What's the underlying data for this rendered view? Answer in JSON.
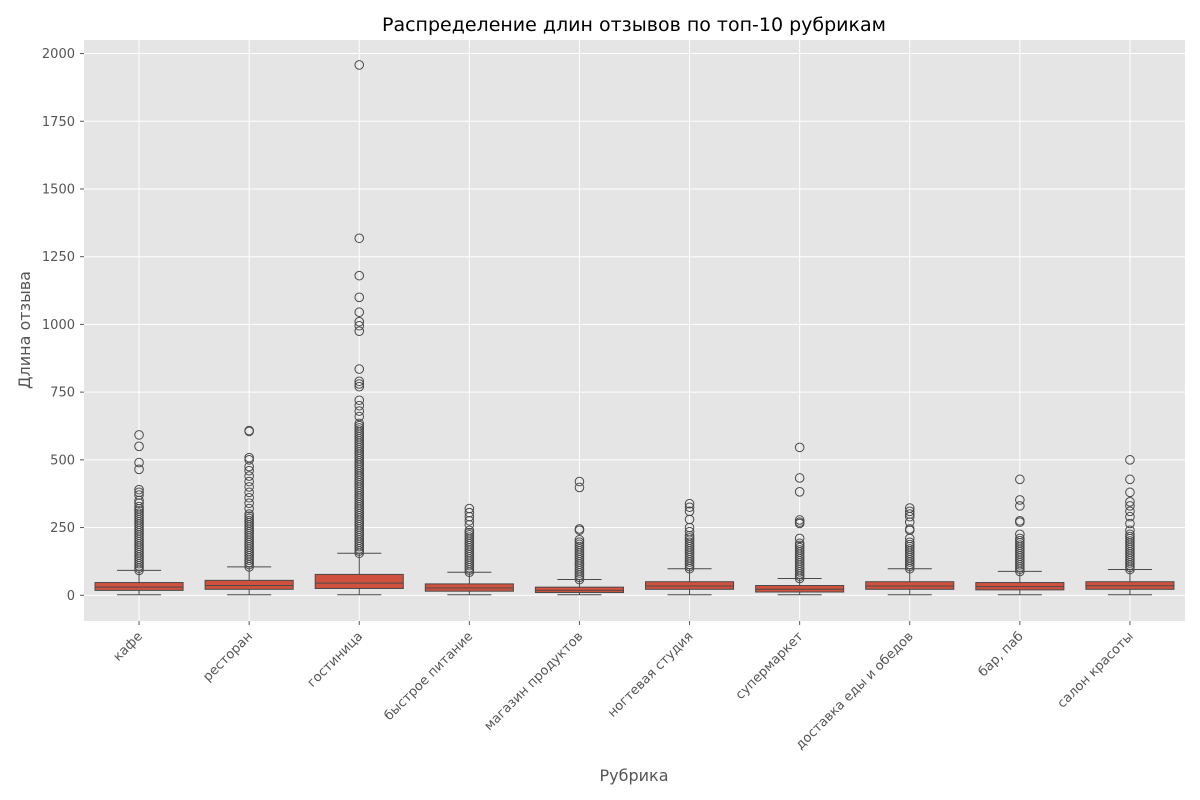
{
  "chart_data": {
    "type": "box",
    "title": "Распределение длин отзывов по топ-10 рубрикам",
    "xlabel": "Рубрика",
    "ylabel": "Длина отзыва",
    "ylim": [
      -95,
      2050
    ],
    "yticks": [
      0,
      250,
      500,
      750,
      1000,
      1250,
      1500,
      1750,
      2000
    ],
    "grid": true,
    "box_color": "#d1513f",
    "background_color": "#e5e5e5",
    "categories": [
      "кафе",
      "ресторан",
      "гостиница",
      "быстрое питание",
      "магазин продуктов",
      "ногтевая студия",
      "супермаркет",
      "доставка еды и обедов",
      "бар, паб",
      "салон красоты"
    ],
    "boxes": [
      {
        "category": "кафе",
        "whisker_low": 2,
        "q1": 18,
        "median": 30,
        "q3": 47,
        "whisker_high": 92,
        "outlier_range": [
          92,
          330
        ],
        "outliers": [
          340,
          350,
          370,
          380,
          390,
          465,
          490,
          550,
          592
        ]
      },
      {
        "category": "ресторан",
        "whisker_low": 2,
        "q1": 22,
        "median": 36,
        "q3": 55,
        "whisker_high": 105,
        "outlier_range": [
          105,
          300
        ],
        "outliers": [
          320,
          340,
          360,
          380,
          400,
          420,
          440,
          460,
          475,
          500,
          508,
          605,
          608
        ]
      },
      {
        "category": "гостиница",
        "whisker_low": 2,
        "q1": 25,
        "median": 45,
        "q3": 77,
        "whisker_high": 155,
        "outlier_range": [
          155,
          640
        ],
        "outliers": [
          660,
          680,
          700,
          720,
          770,
          780,
          790,
          835,
          975,
          995,
          1010,
          1045,
          1100,
          1180,
          1318,
          1958
        ]
      },
      {
        "category": "быстрое питание",
        "whisker_low": 2,
        "q1": 15,
        "median": 27,
        "q3": 42,
        "whisker_high": 85,
        "outlier_range": [
          85,
          240
        ],
        "outliers": [
          260,
          275,
          290,
          305,
          320
        ]
      },
      {
        "category": "магазин продуктов",
        "whisker_low": 2,
        "q1": 10,
        "median": 18,
        "q3": 30,
        "whisker_high": 58,
        "outlier_range": [
          58,
          200
        ],
        "outliers": [
          205,
          240,
          245,
          398,
          420
        ]
      },
      {
        "category": "ногтевая студия",
        "whisker_low": 2,
        "q1": 22,
        "median": 34,
        "q3": 50,
        "whisker_high": 98,
        "outlier_range": [
          98,
          220
        ],
        "outliers": [
          235,
          250,
          280,
          310,
          325,
          338
        ]
      },
      {
        "category": "супермаркет",
        "whisker_low": 2,
        "q1": 12,
        "median": 22,
        "q3": 36,
        "whisker_high": 62,
        "outlier_range": [
          62,
          200
        ],
        "outliers": [
          210,
          265,
          270,
          278,
          382,
          433,
          546
        ]
      },
      {
        "category": "доставка еды и обедов",
        "whisker_low": 2,
        "q1": 22,
        "median": 34,
        "q3": 50,
        "whisker_high": 98,
        "outlier_range": [
          98,
          200
        ],
        "outliers": [
          210,
          240,
          245,
          270,
          290,
          300,
          310,
          322
        ]
      },
      {
        "category": "бар, паб",
        "whisker_low": 2,
        "q1": 20,
        "median": 32,
        "q3": 47,
        "whisker_high": 88,
        "outlier_range": [
          88,
          215
        ],
        "outliers": [
          225,
          270,
          275,
          330,
          352,
          428
        ]
      },
      {
        "category": "салон красоты",
        "whisker_low": 2,
        "q1": 22,
        "median": 35,
        "q3": 50,
        "whisker_high": 95,
        "outlier_range": [
          95,
          230
        ],
        "outliers": [
          240,
          265,
          290,
          310,
          330,
          345,
          380,
          428,
          500
        ]
      }
    ]
  }
}
